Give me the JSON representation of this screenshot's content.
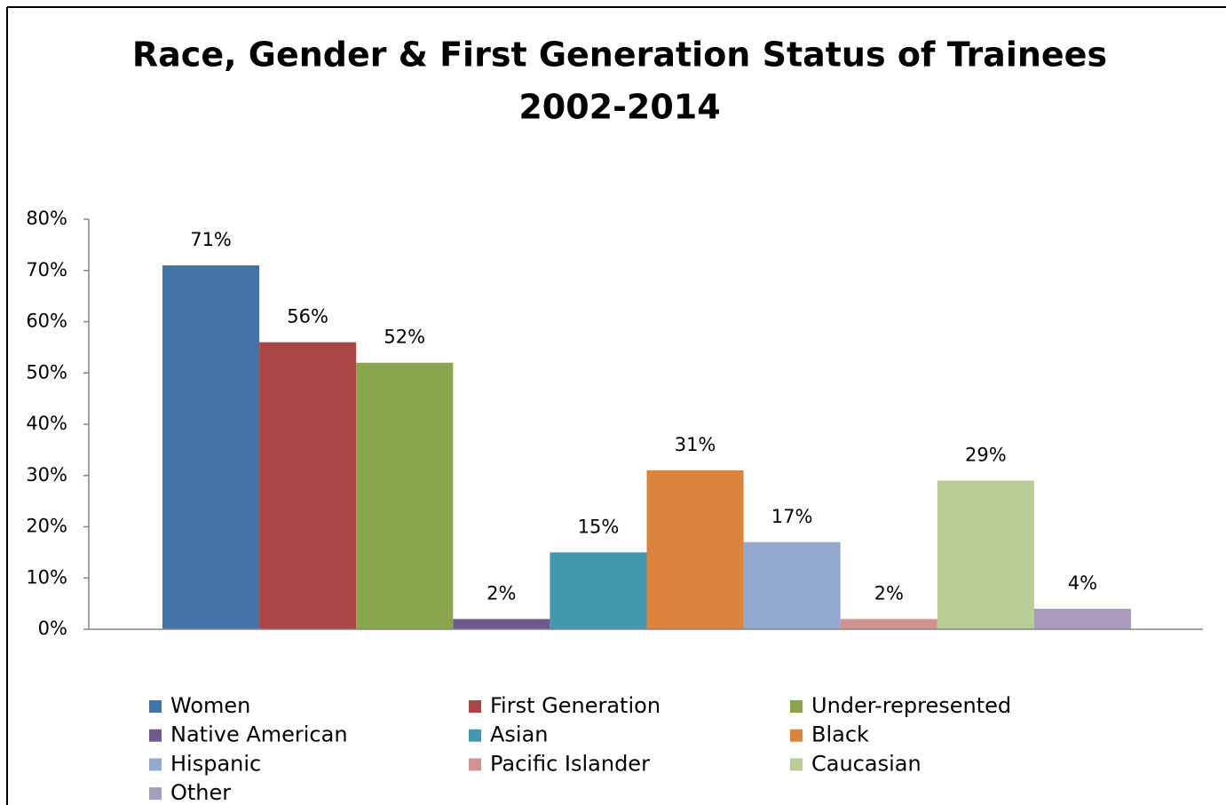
{
  "chart_data": {
    "type": "bar",
    "title": [
      "Race, Gender & First Generation Status of Trainees",
      "2002-2014"
    ],
    "series": [
      {
        "name": "Women",
        "color": "#4572a7",
        "values": [
          71
        ],
        "value_labels": [
          "71%"
        ]
      },
      {
        "name": "First Generation",
        "color": "#aa4643",
        "values": [
          56
        ],
        "value_labels": [
          "56%"
        ]
      },
      {
        "name": "Under-represented",
        "color": "#89a54e",
        "values": [
          52
        ],
        "value_labels": [
          "52%"
        ]
      },
      {
        "name": "Native American",
        "color": "#71588f",
        "values": [
          2
        ],
        "value_labels": [
          "2%"
        ]
      },
      {
        "name": "Asian",
        "color": "#4198af",
        "values": [
          15
        ],
        "value_labels": [
          "15%"
        ]
      },
      {
        "name": "Black",
        "color": "#db843d",
        "values": [
          31
        ],
        "value_labels": [
          "31%"
        ]
      },
      {
        "name": "Hispanic",
        "color": "#93a9cf",
        "values": [
          17
        ],
        "value_labels": [
          "17%"
        ]
      },
      {
        "name": "Pacific Islander",
        "color": "#d19392",
        "values": [
          2
        ],
        "value_labels": [
          "2%"
        ]
      },
      {
        "name": "Caucasian",
        "color": "#b9cd96",
        "values": [
          29
        ],
        "value_labels": [
          "29%"
        ]
      },
      {
        "name": "Other",
        "color": "#a99bbd",
        "values": [
          4
        ],
        "value_labels": [
          "4%"
        ]
      }
    ],
    "ylim": [
      0,
      80
    ],
    "yticks": [
      {
        "value": 0,
        "label": "0%"
      },
      {
        "value": 10,
        "label": "10%"
      },
      {
        "value": 20,
        "label": "20%"
      },
      {
        "value": 30,
        "label": "30%"
      },
      {
        "value": 40,
        "label": "40%"
      },
      {
        "value": 50,
        "label": "50%"
      },
      {
        "value": 60,
        "label": "60%"
      },
      {
        "value": 70,
        "label": "70%"
      },
      {
        "value": 80,
        "label": "80%"
      }
    ],
    "grid": false,
    "legend": "bottom"
  }
}
